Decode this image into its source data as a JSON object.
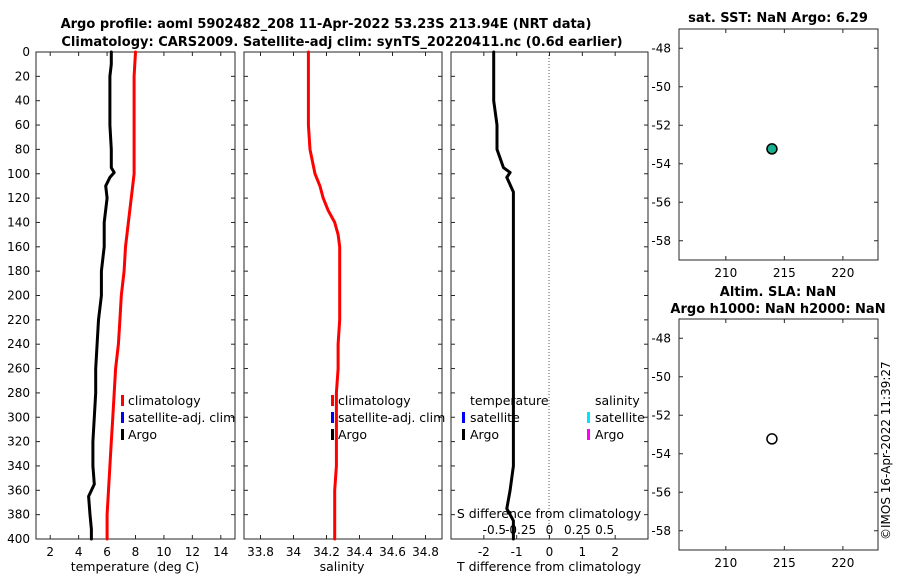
{
  "title": {
    "line1": "Argo profile: aoml 5902482_208 11-Apr-2022 53.23S 213.94E (NRT data)",
    "line2": "Climatology: CARS2009. Satellite-adj clim: synTS_20220411.nc (0.6d earlier)"
  },
  "copyright": "©IMOS 16-Apr-2022 11:39:27",
  "colors": {
    "climatology": "#ff0000",
    "satellite_clim": "#0000ff",
    "argo": "#000000",
    "salinity_satellite": "#00e5ff",
    "salinity_argo": "#ff00ff",
    "marker_fill": "#1aaf8f"
  },
  "chart_data": [
    {
      "id": "temperature",
      "type": "line",
      "xlabel": "temperature (deg C)",
      "ylabel": "",
      "xlim": [
        1,
        15
      ],
      "ylim": [
        400,
        0
      ],
      "xticks": [
        2,
        4,
        6,
        8,
        10,
        12,
        14
      ],
      "yticks": [
        0,
        20,
        40,
        60,
        80,
        100,
        120,
        140,
        160,
        180,
        200,
        220,
        240,
        260,
        280,
        300,
        320,
        340,
        360,
        380,
        400
      ],
      "legend": [
        "climatology",
        "satellite-adj. clim",
        "Argo"
      ],
      "legend_position": "right-middle",
      "series": [
        {
          "name": "climatology",
          "color_key": "climatology",
          "points": [
            [
              8.0,
              0
            ],
            [
              7.9,
              20
            ],
            [
              7.9,
              40
            ],
            [
              7.9,
              60
            ],
            [
              7.9,
              80
            ],
            [
              7.9,
              100
            ],
            [
              7.8,
              110
            ],
            [
              7.6,
              130
            ],
            [
              7.3,
              160
            ],
            [
              7.2,
              180
            ],
            [
              7.0,
              200
            ],
            [
              6.9,
              220
            ],
            [
              6.8,
              240
            ],
            [
              6.6,
              260
            ],
            [
              6.5,
              280
            ],
            [
              6.4,
              300
            ],
            [
              6.3,
              320
            ],
            [
              6.2,
              340
            ],
            [
              6.1,
              360
            ],
            [
              6.0,
              380
            ],
            [
              6.0,
              400
            ]
          ]
        },
        {
          "name": "Argo",
          "color_key": "argo",
          "points": [
            [
              6.3,
              0
            ],
            [
              6.3,
              10
            ],
            [
              6.2,
              20
            ],
            [
              6.2,
              40
            ],
            [
              6.2,
              60
            ],
            [
              6.3,
              80
            ],
            [
              6.3,
              95
            ],
            [
              6.5,
              99
            ],
            [
              6.2,
              103
            ],
            [
              5.9,
              110
            ],
            [
              6.0,
              120
            ],
            [
              5.8,
              140
            ],
            [
              5.8,
              160
            ],
            [
              5.6,
              180
            ],
            [
              5.6,
              200
            ],
            [
              5.4,
              220
            ],
            [
              5.3,
              240
            ],
            [
              5.2,
              260
            ],
            [
              5.2,
              280
            ],
            [
              5.1,
              300
            ],
            [
              5.0,
              320
            ],
            [
              5.0,
              340
            ],
            [
              5.1,
              355
            ],
            [
              4.7,
              365
            ],
            [
              4.8,
              380
            ],
            [
              4.9,
              392
            ],
            [
              4.9,
              400
            ]
          ]
        }
      ]
    },
    {
      "id": "salinity",
      "type": "line",
      "xlabel": "salinity",
      "ylabel": "",
      "xlim": [
        33.7,
        34.9
      ],
      "ylim": [
        400,
        0
      ],
      "xticks": [
        33.8,
        34,
        34.2,
        34.4,
        34.6,
        34.8
      ],
      "legend": [
        "climatology",
        "satellite-adj. clim",
        "Argo"
      ],
      "legend_position": "right-middle",
      "series": [
        {
          "name": "climatology",
          "color_key": "climatology",
          "points": [
            [
              34.09,
              0
            ],
            [
              34.09,
              20
            ],
            [
              34.09,
              40
            ],
            [
              34.09,
              60
            ],
            [
              34.1,
              80
            ],
            [
              34.13,
              100
            ],
            [
              34.16,
              110
            ],
            [
              34.18,
              120
            ],
            [
              34.21,
              130
            ],
            [
              34.25,
              140
            ],
            [
              34.27,
              150
            ],
            [
              34.28,
              160
            ],
            [
              34.28,
              180
            ],
            [
              34.28,
              200
            ],
            [
              34.28,
              220
            ],
            [
              34.27,
              240
            ],
            [
              34.27,
              260
            ],
            [
              34.26,
              280
            ],
            [
              34.26,
              300
            ],
            [
              34.26,
              320
            ],
            [
              34.26,
              340
            ],
            [
              34.25,
              360
            ],
            [
              34.25,
              380
            ],
            [
              34.25,
              400
            ]
          ]
        }
      ]
    },
    {
      "id": "difference",
      "type": "line",
      "xlabel": "T difference from climatology",
      "xlabel_top": "S difference from climatology",
      "xlim": [
        -3,
        3
      ],
      "ylim": [
        400,
        0
      ],
      "xticks": [
        -2,
        -1,
        0,
        1,
        2
      ],
      "xticklabels": [
        "-2",
        "-1",
        "0",
        "1",
        "2"
      ],
      "xticks_s": [
        -2,
        -1,
        0,
        1,
        2
      ],
      "xticklabels_s": [
        "-0.5",
        "-0.25",
        "0",
        "0.25",
        "0.5"
      ],
      "legend_t": {
        "title": "temperature",
        "items": [
          "satellite",
          "Argo"
        ]
      },
      "legend_s": {
        "title": "salinity",
        "items": [
          "satellite",
          "Argo"
        ]
      },
      "series": [
        {
          "name": "T Argo minus climatology",
          "color_key": "argo",
          "points": [
            [
              -1.7,
              0
            ],
            [
              -1.7,
              10
            ],
            [
              -1.7,
              40
            ],
            [
              -1.6,
              60
            ],
            [
              -1.6,
              80
            ],
            [
              -1.4,
              95
            ],
            [
              -1.2,
              99
            ],
            [
              -1.3,
              103
            ],
            [
              -1.1,
              115
            ],
            [
              -1.1,
              140
            ],
            [
              -1.1,
              180
            ],
            [
              -1.1,
              220
            ],
            [
              -1.1,
              260
            ],
            [
              -1.1,
              300
            ],
            [
              -1.1,
              340
            ],
            [
              -1.2,
              360
            ],
            [
              -1.3,
              375
            ],
            [
              -1.1,
              385
            ],
            [
              -1.1,
              400
            ]
          ]
        }
      ]
    },
    {
      "id": "sst_map",
      "type": "scatter",
      "title": "sat. SST: NaN Argo: 6.29",
      "xlim": [
        206,
        223
      ],
      "ylim": [
        -59,
        -47
      ],
      "xticks": [
        210,
        215,
        220
      ],
      "yticks": [
        -48,
        -50,
        -52,
        -54,
        -56,
        -58
      ],
      "points": [
        {
          "x": 213.94,
          "y": -53.23,
          "filled": true
        }
      ]
    },
    {
      "id": "sla_map",
      "type": "scatter",
      "title": "Altim. SLA: NaN",
      "title2": "Argo h1000: NaN h2000: NaN",
      "xlim": [
        206,
        223
      ],
      "ylim": [
        -59,
        -47
      ],
      "xticks": [
        210,
        215,
        220
      ],
      "yticks": [
        -48,
        -50,
        -52,
        -54,
        -56,
        -58
      ],
      "points": [
        {
          "x": 213.94,
          "y": -53.23,
          "filled": false
        }
      ]
    }
  ]
}
